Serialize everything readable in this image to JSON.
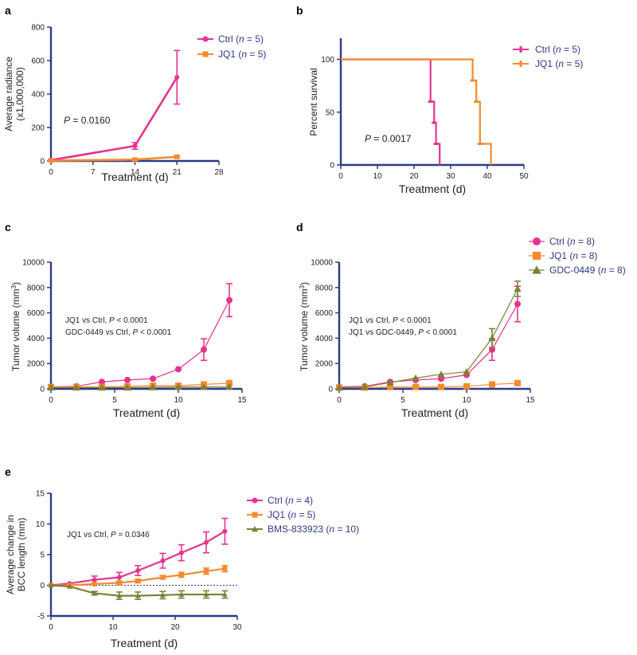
{
  "figure_title": "Five-panel JQ1 treatment figure",
  "colors": {
    "ctrl": "#e6338f",
    "jq1": "#f58a2e",
    "olive": "#7f8036",
    "axis": "#2f3a8a",
    "legend_text": "#2f3a8a",
    "text": "#222222"
  },
  "chart_data": [
    {
      "panel": "a",
      "type": "line",
      "xlabel": "Treatment (d)",
      "ylabel_lines": [
        "Average radiance",
        "(x1,000,000)"
      ],
      "xlim": [
        0,
        28
      ],
      "ylim": [
        0,
        800
      ],
      "xticks": [
        0,
        7,
        14,
        21,
        28
      ],
      "yticks": [
        0,
        200,
        400,
        600,
        800
      ],
      "annotations": [
        {
          "prefix": "",
          "italic": "P",
          "suffix": " = 0.0160"
        }
      ],
      "series": [
        {
          "name": "Ctrl",
          "n_label": "5",
          "color_key": "ctrl",
          "marker": "circle",
          "x": [
            0,
            14,
            21
          ],
          "y": [
            5,
            90,
            500
          ],
          "err": [
            3,
            20,
            160
          ]
        },
        {
          "name": "JQ1",
          "n_label": "5",
          "color_key": "jq1",
          "marker": "square",
          "x": [
            0,
            14,
            21
          ],
          "y": [
            2,
            8,
            25
          ],
          "err": [
            1,
            4,
            8
          ]
        }
      ]
    },
    {
      "panel": "b",
      "type": "line",
      "subtype": "survival-step",
      "xlabel": "Treatment (d)",
      "ylabel_lines": [
        "Percent survival"
      ],
      "xlim": [
        0,
        50
      ],
      "ylim": [
        0,
        120
      ],
      "xticks": [
        0,
        10,
        20,
        30,
        40,
        50
      ],
      "yticks": [
        0,
        50,
        100
      ],
      "annotations": [
        {
          "prefix": "",
          "italic": "P",
          "suffix": " = 0.0017"
        }
      ],
      "series": [
        {
          "name": "Ctrl",
          "n_label": "5",
          "color_key": "ctrl",
          "steps": [
            [
              0,
              100
            ],
            [
              24.5,
              100
            ],
            [
              24.5,
              60
            ],
            [
              25.5,
              60
            ],
            [
              25.5,
              40
            ],
            [
              26,
              40
            ],
            [
              26,
              20
            ],
            [
              27,
              20
            ],
            [
              27,
              0
            ]
          ],
          "censor_ticks": [
            [
              24.5,
              60
            ],
            [
              25.5,
              40
            ],
            [
              26,
              20
            ]
          ]
        },
        {
          "name": "JQ1",
          "n_label": "5",
          "color_key": "jq1",
          "steps": [
            [
              0,
              100
            ],
            [
              36,
              100
            ],
            [
              36,
              80
            ],
            [
              37,
              80
            ],
            [
              37,
              60
            ],
            [
              38,
              60
            ],
            [
              38,
              20
            ],
            [
              41,
              20
            ],
            [
              41,
              0
            ]
          ],
          "censor_ticks": [
            [
              36,
              80
            ],
            [
              37,
              60
            ],
            [
              38,
              20
            ]
          ]
        }
      ]
    },
    {
      "panel": "c",
      "type": "line",
      "xlabel": "Treatment (d)",
      "ylabel_main": "Tumor volume (mm",
      "ylabel_sup": "3",
      "ylabel_end": ")",
      "xlim": [
        0,
        15
      ],
      "ylim": [
        0,
        10000
      ],
      "xticks": [
        0,
        5,
        10,
        15
      ],
      "yticks": [
        0,
        2000,
        4000,
        6000,
        8000,
        10000
      ],
      "annotations": [
        {
          "prefix": "JQ1 vs Ctrl, ",
          "italic": "P",
          "suffix": " < 0.0001"
        },
        {
          "prefix": "GDC-0449 vs Ctrl, ",
          "italic": "P",
          "suffix": " < 0.0001"
        }
      ],
      "series": [
        {
          "name": "Ctrl",
          "color_key": "ctrl",
          "marker": "circle",
          "x": [
            0,
            2,
            4,
            6,
            8,
            10,
            12,
            14
          ],
          "y": [
            150,
            200,
            550,
            700,
            800,
            1550,
            3100,
            7000
          ],
          "err": [
            0,
            0,
            0,
            0,
            0,
            0,
            850,
            1300
          ]
        },
        {
          "name": "JQ1",
          "color_key": "jq1",
          "marker": "square",
          "x": [
            0,
            2,
            4,
            6,
            8,
            10,
            12,
            14
          ],
          "y": [
            150,
            150,
            150,
            200,
            250,
            250,
            350,
            450
          ],
          "err": [
            0,
            0,
            0,
            0,
            0,
            0,
            0,
            0
          ]
        },
        {
          "name": "GDC-0449",
          "color_key": "olive",
          "marker": "triangle",
          "x": [
            0,
            2,
            4,
            6,
            8,
            10,
            12,
            14
          ],
          "y": [
            100,
            100,
            100,
            100,
            120,
            150,
            150,
            150
          ],
          "err": [
            0,
            0,
            0,
            0,
            0,
            0,
            0,
            0
          ]
        }
      ]
    },
    {
      "panel": "d",
      "type": "line",
      "xlabel": "Treatment (d)",
      "ylabel_main": "Tumor volume (mm",
      "ylabel_sup": "3",
      "ylabel_end": ")",
      "xlim": [
        0,
        15
      ],
      "ylim": [
        0,
        10000
      ],
      "xticks": [
        0,
        5,
        10,
        15
      ],
      "yticks": [
        0,
        2000,
        4000,
        6000,
        8000,
        10000
      ],
      "annotations": [
        {
          "prefix": "JQ1 vs Ctrl, ",
          "italic": "P",
          "suffix": " < 0.0001"
        },
        {
          "prefix": "JQ1 vs GDC-0449, ",
          "italic": "P",
          "suffix": " < 0.0001"
        }
      ],
      "legend": [
        {
          "name": "Ctrl",
          "n_label": "8",
          "color_key": "ctrl",
          "marker": "circle"
        },
        {
          "name": "JQ1",
          "n_label": "8",
          "color_key": "jq1",
          "marker": "square"
        },
        {
          "name": "GDC-0449",
          "n_label": "8",
          "color_key": "olive",
          "marker": "triangle"
        }
      ],
      "series": [
        {
          "name": "Ctrl",
          "color_key": "ctrl",
          "marker": "circle",
          "x": [
            0,
            2,
            4,
            6,
            8,
            10,
            12,
            14
          ],
          "y": [
            150,
            200,
            550,
            700,
            800,
            1100,
            3100,
            6700
          ],
          "err": [
            0,
            0,
            0,
            0,
            0,
            0,
            850,
            1400
          ]
        },
        {
          "name": "JQ1",
          "color_key": "jq1",
          "marker": "square",
          "x": [
            0,
            2,
            4,
            6,
            8,
            10,
            12,
            14
          ],
          "y": [
            100,
            100,
            150,
            150,
            150,
            200,
            350,
            450
          ],
          "err": [
            0,
            0,
            0,
            0,
            0,
            0,
            0,
            0
          ]
        },
        {
          "name": "GDC-0449",
          "color_key": "olive",
          "marker": "triangle",
          "x": [
            0,
            2,
            4,
            6,
            8,
            10,
            12,
            14
          ],
          "y": [
            100,
            150,
            500,
            850,
            1150,
            1350,
            4000,
            7900
          ],
          "err": [
            0,
            0,
            0,
            0,
            0,
            0,
            750,
            600
          ]
        }
      ]
    },
    {
      "panel": "e",
      "type": "line",
      "xlabel": "Treatment (d)",
      "ylabel_lines": [
        "Average change in",
        "BCC length (mm)"
      ],
      "xlim": [
        0,
        30
      ],
      "ylim": [
        -5,
        15
      ],
      "xticks": [
        0,
        10,
        20,
        30
      ],
      "yticks": [
        -5,
        0,
        5,
        10,
        15
      ],
      "zero_line": true,
      "annotations": [
        {
          "prefix": "JQ1 vs Ctrl, ",
          "italic": "P",
          "suffix": " = 0.0346"
        }
      ],
      "series": [
        {
          "name": "Ctrl",
          "n_label": "4",
          "color_key": "ctrl",
          "marker": "circle",
          "x": [
            0,
            3,
            7,
            11,
            14,
            18,
            21,
            25,
            28
          ],
          "y": [
            0,
            0.3,
            0.9,
            1.3,
            2.4,
            4.0,
            5.3,
            7.0,
            8.8
          ],
          "err": [
            0,
            0,
            0.6,
            0.8,
            0.8,
            1.2,
            1.3,
            1.7,
            2.1
          ]
        },
        {
          "name": "JQ1",
          "n_label": "5",
          "color_key": "jq1",
          "marker": "square",
          "x": [
            0,
            3,
            7,
            11,
            14,
            18,
            21,
            25,
            28
          ],
          "y": [
            0,
            0,
            0.2,
            0.4,
            0.7,
            1.3,
            1.7,
            2.3,
            2.7
          ],
          "err": [
            0,
            0,
            0,
            0.3,
            0.3,
            0.3,
            0.4,
            0.5,
            0.5
          ]
        },
        {
          "name": "BMS-833923",
          "n_label": "10",
          "color_key": "olive",
          "marker": "triangle",
          "x": [
            0,
            3,
            7,
            11,
            14,
            18,
            21,
            25,
            28
          ],
          "y": [
            0,
            -0.2,
            -1.3,
            -1.7,
            -1.7,
            -1.6,
            -1.5,
            -1.5,
            -1.5
          ],
          "err": [
            0,
            0,
            0.3,
            0.6,
            0.6,
            0.6,
            0.6,
            0.6,
            0.6
          ]
        }
      ]
    }
  ]
}
